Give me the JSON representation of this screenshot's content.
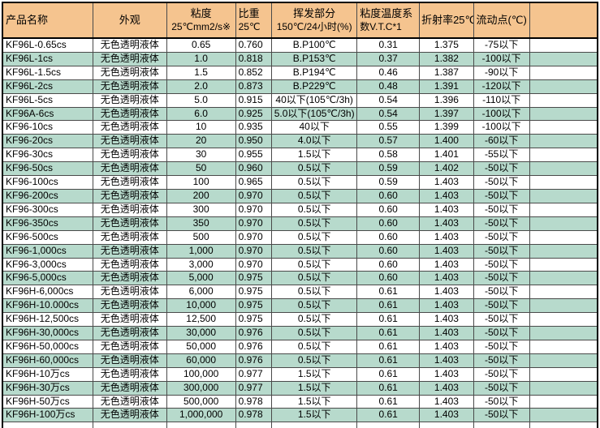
{
  "colors": {
    "header_bg": "#f5c48f",
    "stripe_bg": "#b7dacc",
    "row_bg": "#ffffff",
    "grid_line": "#4a4a4a",
    "outer_border": "#000000",
    "text": "#000000"
  },
  "table": {
    "columns": [
      {
        "id": "product",
        "line1": "产品名称",
        "line2": "",
        "align": "left"
      },
      {
        "id": "appearance",
        "line1": "外观",
        "line2": "",
        "align": "center"
      },
      {
        "id": "viscosity",
        "line1": "粘度",
        "line2": "25℃mm2/s※",
        "align": "center"
      },
      {
        "id": "gravity",
        "line1": "比重",
        "line2": "25℃",
        "align": "left"
      },
      {
        "id": "volatile",
        "line1": "挥发部分",
        "line2": "150℃/24小时(%)",
        "align": "center"
      },
      {
        "id": "vtc",
        "line1": "粘度温度系",
        "line2": "数V.T.C*1",
        "align": "center"
      },
      {
        "id": "refractive",
        "line1": "折射率25℃",
        "line2": "",
        "align": "center"
      },
      {
        "id": "pour",
        "line1": "流动点(℃)",
        "line2": "",
        "align": "center"
      },
      {
        "id": "blank",
        "line1": "",
        "line2": "",
        "align": "center"
      }
    ],
    "rows": [
      [
        "KF96L-0.65cs",
        "无色透明液体",
        "0.65",
        "0.760",
        "B.P100℃",
        "0.31",
        "1.375",
        "-75以下",
        ""
      ],
      [
        "KF96L-1cs",
        "无色透明液体",
        "1.0",
        "0.818",
        "B.P153℃",
        "0.37",
        "1.382",
        "-100以下",
        ""
      ],
      [
        "KF96L-1.5cs",
        "无色透明液体",
        "1.5",
        "0.852",
        "B.P194℃",
        "0.46",
        "1.387",
        "-90以下",
        ""
      ],
      [
        "KF96L-2cs",
        "无色透明液体",
        "2.0",
        "0.873",
        "B.P229℃",
        "0.48",
        "1.391",
        "-120以下",
        ""
      ],
      [
        "KF96L-5cs",
        "无色透明液体",
        "5.0",
        "0.915",
        "40以下(105℃/3h)",
        "0.54",
        "1.396",
        "-110以下",
        ""
      ],
      [
        "KF96A-6cs",
        "无色透明液体",
        "6.0",
        "0.925",
        "5.0以下(105℃/3h)",
        "0.54",
        "1.397",
        "-100以下",
        ""
      ],
      [
        "KF96-10cs",
        "无色透明液体",
        "10",
        "0.935",
        "40以下",
        "0.55",
        "1.399",
        "-100以下",
        ""
      ],
      [
        "KF96-20cs",
        "无色透明液体",
        "20",
        "0.950",
        "4.0以下",
        "0.57",
        "1.400",
        "-60以下",
        ""
      ],
      [
        "KF96-30cs",
        "无色透明液体",
        "30",
        "0.955",
        "1.5以下",
        "0.58",
        "1.401",
        "-55以下",
        ""
      ],
      [
        "KF96-50cs",
        "无色透明液体",
        "50",
        "0.960",
        "0.5以下",
        "0.59",
        "1.402",
        "-50以下",
        ""
      ],
      [
        "KF96-100cs",
        "无色透明液体",
        "100",
        "0.965",
        "0.5以下",
        "0.59",
        "1.403",
        "-50以下",
        ""
      ],
      [
        "KF96-200cs",
        "无色透明液体",
        "200",
        "0.970",
        "0.5以下",
        "0.60",
        "1.403",
        "-50以下",
        ""
      ],
      [
        "KF96-300cs",
        "无色透明液体",
        "300",
        "0.970",
        "0.5以下",
        "0.60",
        "1.403",
        "-50以下",
        ""
      ],
      [
        "KF96-350cs",
        "无色透明液体",
        "350",
        "0.970",
        "0.5以下",
        "0.60",
        "1.403",
        "-50以下",
        ""
      ],
      [
        "KF96-500cs",
        "无色透明液体",
        "500",
        "0.970",
        "0.5以下",
        "0.60",
        "1.403",
        "-50以下",
        ""
      ],
      [
        "KF96-1,000cs",
        "无色透明液体",
        "1,000",
        "0.970",
        "0.5以下",
        "0.60",
        "1.403",
        "-50以下",
        ""
      ],
      [
        "KF96-3,000cs",
        "无色透明液体",
        "3,000",
        "0.970",
        "0.5以下",
        "0.60",
        "1.403",
        "-50以下",
        ""
      ],
      [
        "KF96-5,000cs",
        "无色透明液体",
        "5,000",
        "0.975",
        "0.5以下",
        "0.60",
        "1.403",
        "-50以下",
        ""
      ],
      [
        "KF96H-6,000cs",
        "无色透明液体",
        "6,000",
        "0.975",
        "0.5以下",
        "0.61",
        "1.403",
        "-50以下",
        ""
      ],
      [
        "KF96H-10.000cs",
        "无色透明液体",
        "10,000",
        "0.975",
        "0.5以下",
        "0.61",
        "1.403",
        "-50以下",
        ""
      ],
      [
        "KF96H-12,500cs",
        "无色透明液体",
        "12,500",
        "0.975",
        "0.5以下",
        "0.61",
        "1.403",
        "-50以下",
        ""
      ],
      [
        "KF96H-30,000cs",
        "无色透明液体",
        "30,000",
        "0.976",
        "0.5以下",
        "0.61",
        "1.403",
        "-50以下",
        ""
      ],
      [
        "KF96H-50,000cs",
        "无色透明液体",
        "50,000",
        "0.976",
        "0.5以下",
        "0.61",
        "1.403",
        "-50以下",
        ""
      ],
      [
        "KF96H-60,000cs",
        "无色透明液体",
        "60,000",
        "0.976",
        "0.5以下",
        "0.61",
        "1.403",
        "-50以下",
        ""
      ],
      [
        "KF96H-10万cs",
        "无色透明液体",
        "100,000",
        "0.977",
        "1.5以下",
        "0.61",
        "1.403",
        "-50以下",
        ""
      ],
      [
        "KF96H-30万cs",
        "无色透明液体",
        "300,000",
        "0.977",
        "1.5以下",
        "0.61",
        "1.403",
        "-50以下",
        ""
      ],
      [
        "KF96H-50万cs",
        "无色透明液体",
        "500,000",
        "0.978",
        "1.5以下",
        "0.61",
        "1.403",
        "-50以下",
        ""
      ],
      [
        "KF96H-100万cs",
        "无色透明液体",
        "1,000,000",
        "0.978",
        "1.5以下",
        "0.61",
        "1.403",
        "-50以下",
        ""
      ]
    ],
    "trailing_empty_rows": 1
  }
}
